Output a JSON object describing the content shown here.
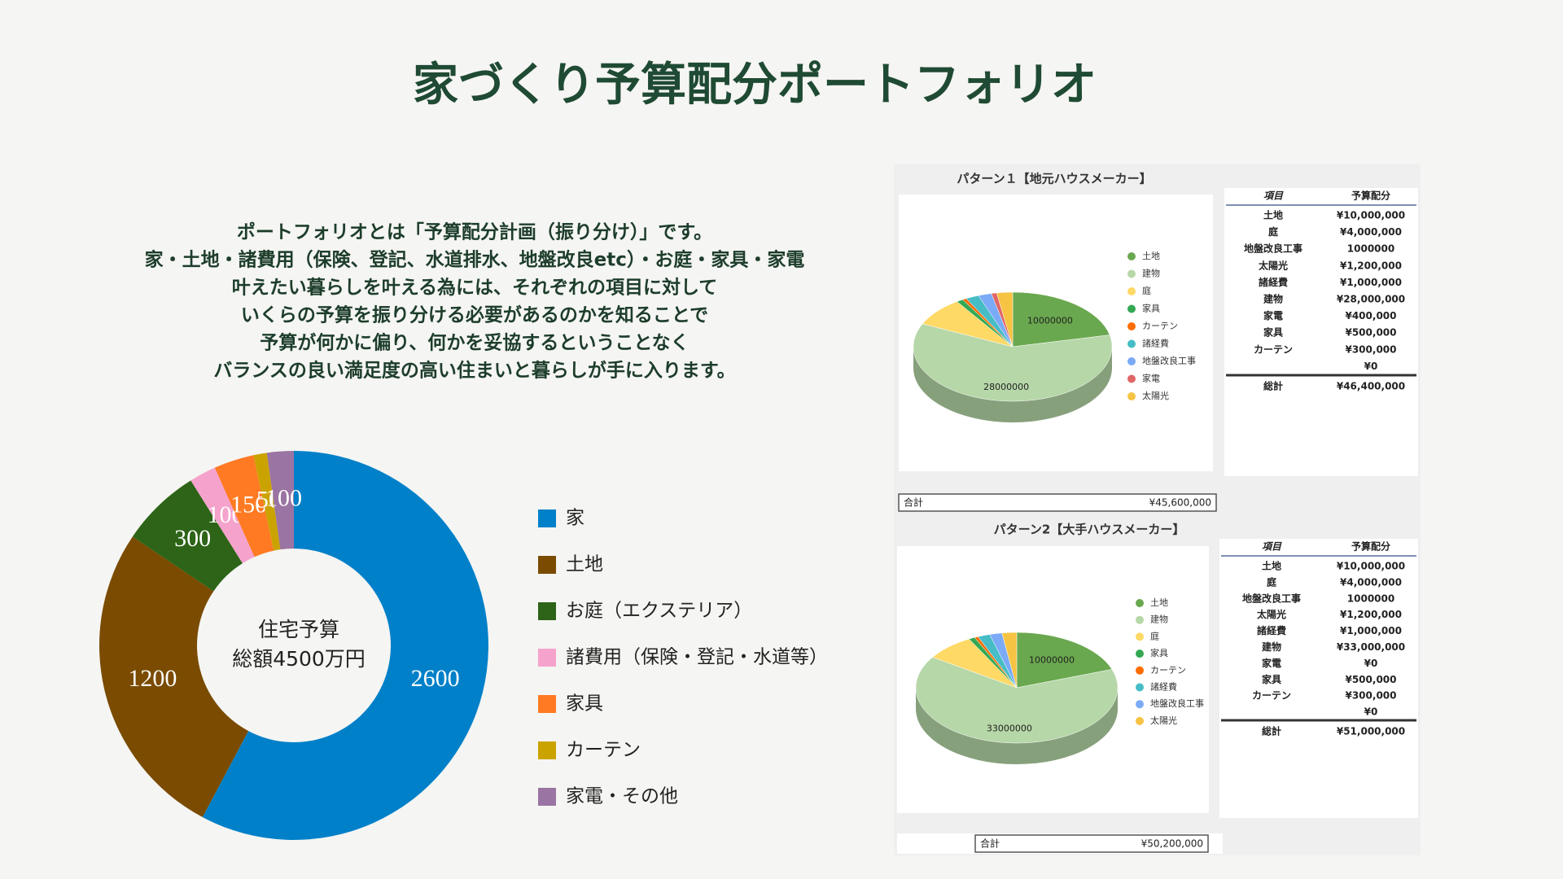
{
  "title": "家づくり予算配分ポートフォリオ",
  "intro": [
    "ポートフォリオとは「予算配分計画（振り分け）」です。",
    "家・土地・諸費用（保険、登記、水道排水、地盤改良etc）・お庭・家具・家電",
    "叶えたい暮らしを叶える為には、それぞれの項目に対して",
    "いくらの予算を振り分ける必要があるのかを知ることで",
    "予算が何かに偏り、何かを妥協するということなく",
    "バランスの良い満足度の高い住まいと暮らしが手に入ります。"
  ],
  "chart_data": [
    {
      "type": "donut",
      "categories": [
        "家",
        "土地",
        "お庭（エクステリア）",
        "諸費用（保険・登記・水道等）",
        "家具",
        "カーテン",
        "家電・その他"
      ],
      "values": [
        2600,
        1200,
        300,
        100,
        150,
        50,
        100
      ],
      "colors": [
        "#0080c9",
        "#7a4b00",
        "#2d6417",
        "#f5a3cc",
        "#ff7a22",
        "#cba300",
        "#9a74a2"
      ],
      "center_label": [
        "住宅予算",
        "総額4500万円"
      ]
    },
    {
      "type": "pie3d",
      "title": "パターン１【地元ハウスメーカー】",
      "categories": [
        "土地",
        "建物",
        "庭",
        "家具",
        "カーテン",
        "諸経費",
        "地盤改良工事",
        "家電",
        "太陽光"
      ],
      "values": [
        10000000,
        28000000,
        4000000,
        500000,
        300000,
        1000000,
        1000000,
        400000,
        1200000
      ],
      "colors": [
        "#6aa84f",
        "#b6d7a8",
        "#ffd966",
        "#34a853",
        "#ff6d01",
        "#46bdc6",
        "#7baaf7",
        "#e06666",
        "#f6c343"
      ]
    },
    {
      "type": "pie3d",
      "title": "パターン2【大手ハウスメーカー】",
      "categories": [
        "土地",
        "建物",
        "庭",
        "家具",
        "カーテン",
        "諸経費",
        "地盤改良工事",
        "太陽光"
      ],
      "values": [
        10000000,
        33000000,
        4000000,
        500000,
        300000,
        1000000,
        1000000,
        1200000
      ],
      "colors": [
        "#6aa84f",
        "#b6d7a8",
        "#ffd966",
        "#34a853",
        "#ff6d01",
        "#46bdc6",
        "#7baaf7",
        "#f6c343"
      ]
    }
  ],
  "tables": [
    {
      "header": [
        "項目",
        "予算配分"
      ],
      "rows": [
        [
          "土地",
          "¥10,000,000"
        ],
        [
          "庭",
          "¥4,000,000"
        ],
        [
          "地盤改良工事",
          "1000000"
        ],
        [
          "太陽光",
          "¥1,200,000"
        ],
        [
          "諸経費",
          "¥1,000,000"
        ],
        [
          "建物",
          "¥28,000,000"
        ],
        [
          "家電",
          "¥400,000"
        ],
        [
          "家具",
          "¥500,000"
        ],
        [
          "カーテン",
          "¥300,000"
        ],
        [
          null,
          "¥0"
        ]
      ],
      "grand_total": [
        "総計",
        "¥46,400,000"
      ],
      "sum_bar": [
        "合計",
        "¥45,600,000"
      ]
    },
    {
      "header": [
        "項目",
        "予算配分"
      ],
      "rows": [
        [
          "土地",
          "¥10,000,000"
        ],
        [
          "庭",
          "¥4,000,000"
        ],
        [
          "地盤改良工事",
          "1000000"
        ],
        [
          "太陽光",
          "¥1,200,000"
        ],
        [
          "諸経費",
          "¥1,000,000"
        ],
        [
          "建物",
          "¥33,000,000"
        ],
        [
          "家電",
          "¥0"
        ],
        [
          "家具",
          "¥500,000"
        ],
        [
          "カーテン",
          "¥300,000"
        ],
        [
          null,
          "¥0"
        ]
      ],
      "grand_total": [
        "総計",
        "¥51,000,000"
      ],
      "sum_bar": [
        "合計",
        "¥50,200,000"
      ]
    }
  ]
}
